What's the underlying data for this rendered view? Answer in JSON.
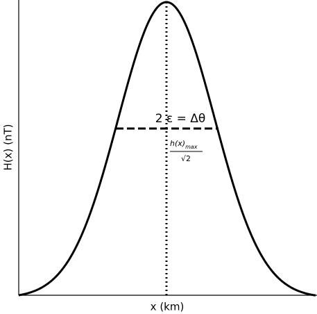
{
  "axes": {
    "y_label": "H(x) (nT)",
    "x_label": "x (km)"
  },
  "annotations": {
    "width": "2 ε = Δθ",
    "numerator": "h(x)",
    "subscript": "max",
    "denominator": "√2"
  }
}
